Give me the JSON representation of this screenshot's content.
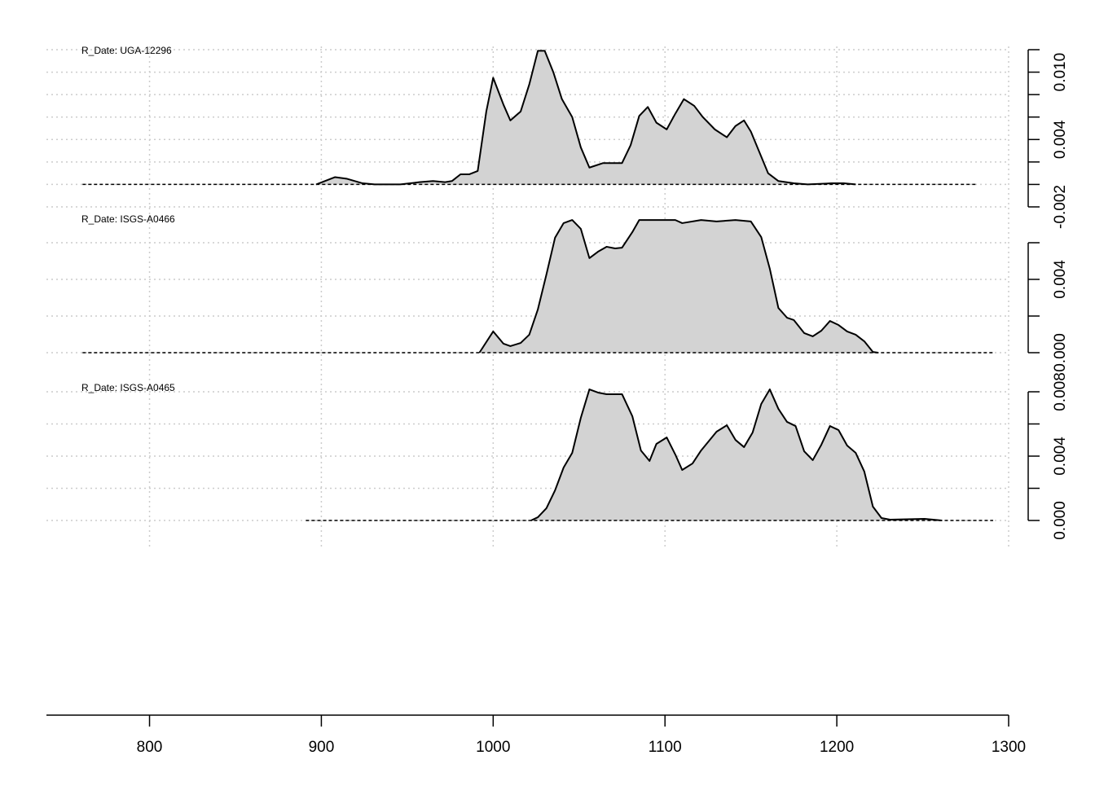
{
  "chart_data": {
    "type": "density-stack",
    "xlim": [
      740,
      1300
    ],
    "xticks": [
      800,
      900,
      1000,
      1100,
      1200,
      1300
    ],
    "grid": true,
    "panels": [
      {
        "label": "R_Date: UGA-12296",
        "color": "#d3d3d3",
        "range": [
          761,
          1281
        ],
        "ylim": [
          -0.002,
          0.012
        ],
        "yticks": [
          {
            "value": 0.01,
            "label": "0.010"
          },
          0.004,
          -0.002
        ],
        "yticks_minor": [
          0.012,
          0.008,
          0.006,
          0.002,
          0
        ],
        "x": [
          897,
          908,
          915,
          924,
          931,
          946,
          957,
          965,
          972,
          976,
          981,
          986,
          991,
          996,
          1000,
          1006,
          1010,
          1016,
          1021,
          1026,
          1030,
          1035,
          1040,
          1046,
          1051,
          1056,
          1064,
          1075,
          1080,
          1085,
          1090,
          1095,
          1101,
          1106,
          1111,
          1117,
          1122,
          1129,
          1136,
          1141,
          1146,
          1150,
          1160,
          1166,
          1175,
          1183,
          1197,
          1204,
          1211
        ],
        "values": [
          0,
          0.00065,
          0.0005,
          0.0001,
          0,
          0,
          0.0002,
          0.0003,
          0.0002,
          0.0003,
          0.0009,
          0.0009,
          0.0012,
          0.0065,
          0.0095,
          0.0071,
          0.0057,
          0.0065,
          0.0089,
          0.0119,
          0.0119,
          0.01,
          0.0076,
          0.006,
          0.0033,
          0.0015,
          0.0019,
          0.0019,
          0.0035,
          0.0061,
          0.0069,
          0.0055,
          0.0049,
          0.0063,
          0.0076,
          0.007,
          0.006,
          0.0049,
          0.0042,
          0.0052,
          0.0057,
          0.0047,
          0.001,
          0.0003,
          0.0001,
          0,
          0.0001,
          0.0001,
          0
        ]
      },
      {
        "label": "R_Date: ISGS-A0466",
        "color": "#d3d3d3",
        "range": [
          761,
          1291
        ],
        "ylim": [
          0,
          0.006
        ],
        "yticks": [
          0.004,
          {
            "value": 0,
            "label": "0.000"
          }
        ],
        "yticks_minor": [
          0.006,
          0.002
        ],
        "x": [
          992,
          1000,
          1006,
          1010,
          1016,
          1021,
          1026,
          1031,
          1036,
          1041,
          1046,
          1051,
          1056,
          1061,
          1066,
          1071,
          1075,
          1081,
          1085,
          1095,
          1106,
          1110,
          1121,
          1130,
          1141,
          1150,
          1156,
          1161,
          1166,
          1171,
          1175,
          1181,
          1186,
          1191,
          1196,
          1201,
          1206,
          1211,
          1216,
          1221,
          1224
        ],
        "values": [
          0,
          0.00116,
          0.00049,
          0.00036,
          0.00053,
          0.00098,
          0.00236,
          0.00427,
          0.00627,
          0.00707,
          0.00724,
          0.00676,
          0.00516,
          0.00551,
          0.00578,
          0.00569,
          0.00573,
          0.00658,
          0.00724,
          0.00724,
          0.00724,
          0.00707,
          0.00724,
          0.00716,
          0.00724,
          0.00716,
          0.00631,
          0.00458,
          0.00244,
          0.00191,
          0.00178,
          0.00107,
          0.00089,
          0.0012,
          0.00173,
          0.00151,
          0.00116,
          0.00098,
          0.00062,
          4e-05,
          0
        ]
      },
      {
        "label": "R_Date: ISGS-A0465",
        "color": "#d3d3d3",
        "range": [
          891,
          1291
        ],
        "ylim": [
          0,
          0.008
        ],
        "yticks": [
          0.008,
          0.004,
          {
            "value": 0,
            "label": "0.000"
          }
        ],
        "yticks_minor": [
          0.006,
          0.002
        ],
        "x": [
          1022,
          1026,
          1031,
          1036,
          1041,
          1046,
          1051,
          1056,
          1061,
          1066,
          1075,
          1081,
          1086,
          1091,
          1095,
          1101,
          1106,
          1110,
          1116,
          1121,
          1130,
          1136,
          1141,
          1146,
          1151,
          1156,
          1161,
          1166,
          1171,
          1176,
          1181,
          1186,
          1191,
          1196,
          1201,
          1206,
          1211,
          1216,
          1221,
          1226,
          1231,
          1251,
          1261
        ],
        "values": [
          0,
          0.0002,
          0.00076,
          0.00187,
          0.00329,
          0.0042,
          0.00638,
          0.00815,
          0.00795,
          0.00785,
          0.00785,
          0.00648,
          0.00435,
          0.0037,
          0.00476,
          0.00516,
          0.0041,
          0.00314,
          0.00354,
          0.00435,
          0.00552,
          0.00592,
          0.00501,
          0.00456,
          0.00547,
          0.00724,
          0.00815,
          0.00694,
          0.00613,
          0.00587,
          0.0043,
          0.00375,
          0.00471,
          0.00587,
          0.00562,
          0.00466,
          0.0042,
          0.00304,
          0.00086,
          0.00015,
          5e-05,
          0.0001,
          0
        ]
      }
    ]
  }
}
